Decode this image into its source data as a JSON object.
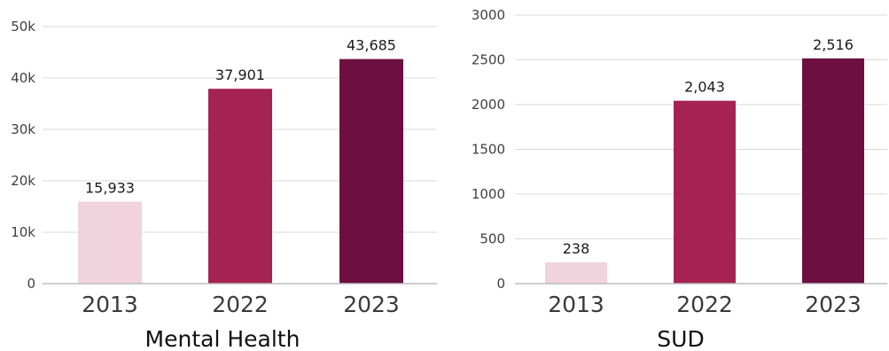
{
  "chart_data": [
    {
      "type": "bar",
      "title": "Mental Health",
      "categories": [
        "2013",
        "2022",
        "2023"
      ],
      "values": [
        15933,
        37901,
        43685
      ],
      "data_labels": [
        "15,933",
        "37,901",
        "43,685"
      ],
      "ylim": [
        0,
        50000
      ],
      "yticks": [
        0,
        10000,
        20000,
        30000,
        40000,
        50000
      ],
      "ytick_labels": [
        "0",
        "10k",
        "20k",
        "30k",
        "40k",
        "50k"
      ],
      "colors": [
        "#f0d3dd",
        "#a52350",
        "#6e0f42"
      ],
      "grid": true
    },
    {
      "type": "bar",
      "title": "SUD",
      "categories": [
        "2013",
        "2022",
        "2023"
      ],
      "values": [
        238,
        2043,
        2516
      ],
      "data_labels": [
        "238",
        "2,043",
        "2,516"
      ],
      "ylim": [
        0,
        3000
      ],
      "yticks": [
        0,
        500,
        1000,
        1500,
        2000,
        2500,
        3000
      ],
      "ytick_labels": [
        "0",
        "500",
        "1000",
        "1500",
        "2000",
        "2500",
        "3000"
      ],
      "colors": [
        "#f0d3dd",
        "#a52350",
        "#6e0f42"
      ],
      "grid": true
    }
  ]
}
